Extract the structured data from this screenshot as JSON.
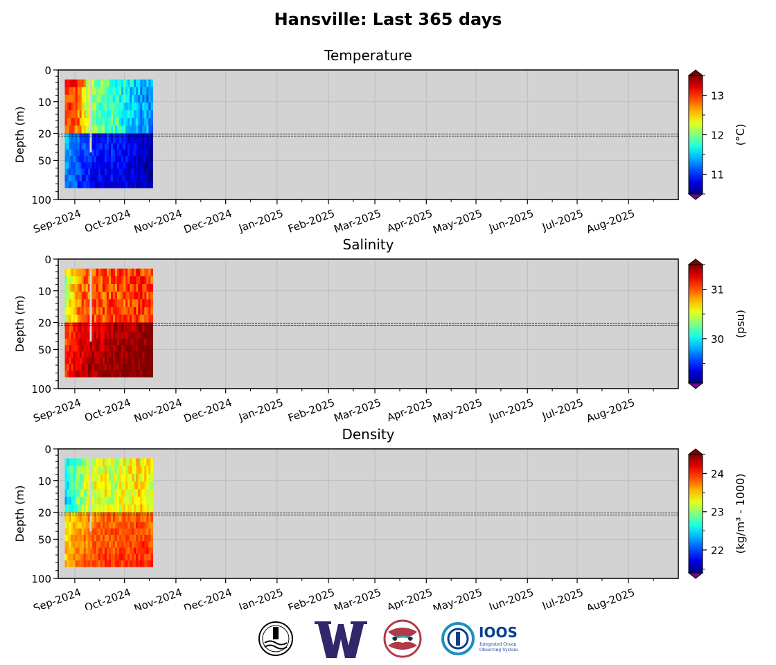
{
  "figure_title": "Hansville: Last 365 days",
  "chart_data": [
    {
      "type": "heatmap",
      "title": "Temperature",
      "ylabel": "Depth (m)",
      "colorbar_label": "(°C)",
      "colorbar_ticks": [
        11,
        12,
        13
      ],
      "clim": [
        10.5,
        13.5
      ],
      "colormap": "jet",
      "y_ticks": [
        "0",
        "10",
        "20",
        "50",
        "100"
      ],
      "x_ticks": [
        "Sep-2024",
        "Oct-2024",
        "Nov-2024",
        "Dec-2024",
        "Jan-2025",
        "Feb-2025",
        "Mar-2025",
        "Apr-2025",
        "May-2025",
        "Jun-2025",
        "Jul-2025",
        "Aug-2025"
      ],
      "data_extent": {
        "start": "2024-08-26",
        "end": "2024-10-18",
        "depth_min": 3,
        "depth_max": 85
      },
      "upper_profile": [
        13.0,
        12.8,
        12.1,
        11.9,
        11.8,
        11.6,
        11.4,
        11.3
      ],
      "lower_profile": [
        11.4,
        11.2,
        11.0,
        10.9,
        11.0,
        10.9,
        10.8,
        10.7
      ],
      "surface_value": 13.3,
      "grid": true,
      "legend": "none"
    },
    {
      "type": "heatmap",
      "title": "Salinity",
      "ylabel": "Depth (m)",
      "colorbar_label": "(psu)",
      "colorbar_ticks": [
        30,
        31
      ],
      "clim": [
        29.1,
        31.5
      ],
      "colormap": "jet",
      "y_ticks": [
        "0",
        "10",
        "20",
        "50",
        "100"
      ],
      "x_ticks": [
        "Sep-2024",
        "Oct-2024",
        "Nov-2024",
        "Dec-2024",
        "Jan-2025",
        "Feb-2025",
        "Mar-2025",
        "Apr-2025",
        "May-2025",
        "Jun-2025",
        "Jul-2025",
        "Aug-2025"
      ],
      "data_extent": {
        "start": "2024-08-26",
        "end": "2024-10-18",
        "depth_min": 3,
        "depth_max": 85
      },
      "upper_profile": [
        30.4,
        30.9,
        31.0,
        31.0,
        31.0,
        31.0,
        31.1,
        31.0
      ],
      "lower_profile": [
        31.0,
        31.2,
        31.3,
        31.3,
        31.4,
        31.4,
        31.4,
        31.5
      ],
      "surface_value": 30.9,
      "grid": true,
      "legend": "none"
    },
    {
      "type": "heatmap",
      "title": "Density",
      "ylabel": "Depth (m)",
      "colorbar_label": "(kg/m³ - 1000)",
      "colorbar_ticks": [
        22,
        23,
        24
      ],
      "clim": [
        21.4,
        24.5
      ],
      "colormap": "jet",
      "y_ticks": [
        "0",
        "10",
        "20",
        "50",
        "100"
      ],
      "x_ticks": [
        "Sep-2024",
        "Oct-2024",
        "Nov-2024",
        "Dec-2024",
        "Jan-2025",
        "Feb-2025",
        "Mar-2025",
        "Apr-2025",
        "May-2025",
        "Jun-2025",
        "Jul-2025",
        "Aug-2025"
      ],
      "data_extent": {
        "start": "2024-08-26",
        "end": "2024-10-18",
        "depth_min": 3,
        "depth_max": 85
      },
      "upper_profile": [
        22.5,
        23.0,
        23.2,
        23.3,
        23.2,
        23.3,
        23.4,
        23.3
      ],
      "lower_profile": [
        23.4,
        23.6,
        23.7,
        23.8,
        23.8,
        23.8,
        23.9,
        23.8
      ],
      "surface_value": 22.6,
      "grid": true,
      "legend": "none"
    }
  ],
  "logos": [
    {
      "name": "seal-logo",
      "color": "#000000"
    },
    {
      "name": "uw-logo",
      "text": "W",
      "color": "#33266b"
    },
    {
      "name": "tribal-logo",
      "color": "#b03a48"
    },
    {
      "name": "ioos-logo",
      "text": "IOOS",
      "subtext": "Integrated Ocean Observing System",
      "color": "#0b3e91"
    }
  ]
}
